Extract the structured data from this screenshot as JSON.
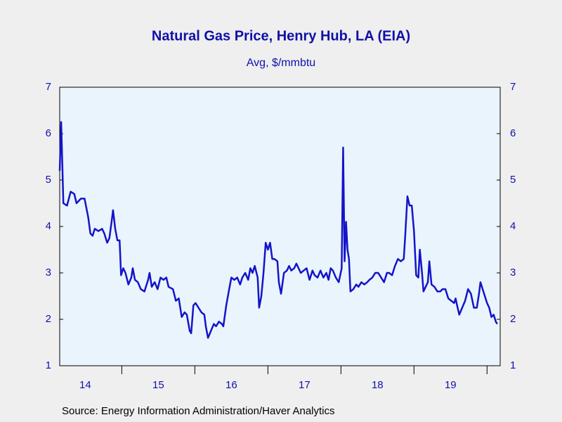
{
  "chart_data": {
    "type": "line",
    "title": "Natural Gas Price, Henry Hub, LA (EIA)",
    "subtitle": "Avg, $/mmbtu",
    "source": "Source:  Energy Information Administration/Haver Analytics",
    "x": [
      14.15,
      14.17,
      14.2,
      14.25,
      14.3,
      14.35,
      14.38,
      14.44,
      14.49,
      14.54,
      14.57,
      14.6,
      14.63,
      14.68,
      14.73,
      14.76,
      14.8,
      14.83,
      14.86,
      14.88,
      14.91,
      14.94,
      14.97,
      14.99,
      15.02,
      15.05,
      15.09,
      15.13,
      15.15,
      15.18,
      15.22,
      15.26,
      15.31,
      15.36,
      15.38,
      15.41,
      15.45,
      15.49,
      15.53,
      15.57,
      15.61,
      15.64,
      15.7,
      15.74,
      15.78,
      15.82,
      15.86,
      15.89,
      15.93,
      15.95,
      15.98,
      16.01,
      16.05,
      16.09,
      16.13,
      16.15,
      16.18,
      16.22,
      16.26,
      16.29,
      16.33,
      16.37,
      16.39,
      16.43,
      16.47,
      16.5,
      16.54,
      16.58,
      16.62,
      16.65,
      16.69,
      16.73,
      16.76,
      16.79,
      16.82,
      16.86,
      16.88,
      16.91,
      16.94,
      16.97,
      17.0,
      17.03,
      17.06,
      17.09,
      17.13,
      17.15,
      17.18,
      17.22,
      17.26,
      17.29,
      17.32,
      17.36,
      17.39,
      17.42,
      17.45,
      17.49,
      17.53,
      17.57,
      17.61,
      17.64,
      17.68,
      17.72,
      17.76,
      17.8,
      17.83,
      17.86,
      17.89,
      17.93,
      17.97,
      18.01,
      18.03,
      18.05,
      18.07,
      18.09,
      18.11,
      18.13,
      18.17,
      18.21,
      18.24,
      18.28,
      18.32,
      18.36,
      18.39,
      18.43,
      18.47,
      18.51,
      18.55,
      18.59,
      18.63,
      18.66,
      18.7,
      18.74,
      18.78,
      18.82,
      18.86,
      18.88,
      18.91,
      18.94,
      18.97,
      19.0,
      19.03,
      19.06,
      19.08,
      19.11,
      19.13,
      19.16,
      19.19,
      19.21,
      19.24,
      19.28,
      19.32,
      19.36,
      19.39,
      19.43,
      19.47,
      19.51,
      19.55,
      19.57,
      19.59,
      19.62,
      19.66,
      19.7,
      19.74,
      19.78,
      19.82,
      19.86,
      19.89,
      19.91,
      19.94,
      19.97,
      20.0,
      20.03,
      20.06,
      20.09,
      20.12,
      20.14
    ],
    "series": [
      {
        "name": "Natural Gas Price, Henry Hub, LA",
        "color": "#1414c8",
        "values": [
          5.2,
          6.25,
          4.5,
          4.45,
          4.75,
          4.7,
          4.5,
          4.6,
          4.6,
          4.2,
          3.85,
          3.8,
          3.95,
          3.9,
          3.95,
          3.85,
          3.65,
          3.75,
          4.1,
          4.35,
          3.95,
          3.7,
          3.7,
          2.95,
          3.1,
          3.0,
          2.75,
          2.9,
          3.1,
          2.85,
          2.8,
          2.65,
          2.6,
          2.85,
          3.0,
          2.7,
          2.8,
          2.65,
          2.9,
          2.85,
          2.9,
          2.7,
          2.65,
          2.4,
          2.45,
          2.05,
          2.15,
          2.1,
          1.75,
          1.7,
          2.3,
          2.35,
          2.25,
          2.15,
          2.1,
          1.85,
          1.6,
          1.75,
          1.9,
          1.85,
          1.95,
          1.9,
          1.85,
          2.3,
          2.65,
          2.9,
          2.85,
          2.9,
          2.75,
          2.9,
          3.0,
          2.85,
          3.1,
          3.0,
          3.15,
          2.9,
          2.25,
          2.5,
          3.0,
          3.65,
          3.5,
          3.65,
          3.3,
          3.3,
          3.25,
          2.8,
          2.55,
          3.0,
          3.05,
          3.15,
          3.05,
          3.1,
          3.2,
          3.1,
          3.0,
          3.05,
          3.1,
          2.85,
          3.05,
          2.95,
          2.9,
          3.05,
          2.9,
          3.0,
          2.85,
          3.1,
          3.05,
          2.9,
          2.8,
          3.1,
          5.7,
          3.25,
          4.1,
          3.5,
          3.3,
          2.6,
          2.65,
          2.75,
          2.7,
          2.8,
          2.75,
          2.8,
          2.85,
          2.9,
          3.0,
          3.0,
          2.9,
          2.8,
          3.0,
          3.0,
          2.95,
          3.15,
          3.3,
          3.25,
          3.3,
          3.8,
          4.65,
          4.45,
          4.45,
          3.9,
          2.95,
          2.9,
          3.5,
          3.0,
          2.6,
          2.7,
          2.8,
          3.25,
          2.75,
          2.7,
          2.6,
          2.6,
          2.65,
          2.65,
          2.45,
          2.4,
          2.35,
          2.45,
          2.3,
          2.1,
          2.25,
          2.4,
          2.65,
          2.55,
          2.25,
          2.25,
          2.55,
          2.8,
          2.65,
          2.5,
          2.35,
          2.25,
          2.05,
          2.1,
          1.95,
          1.9
        ]
      }
    ],
    "xlim": [
      14.15,
      20.18
    ],
    "xticks": [
      {
        "value": 14.5,
        "label": "14"
      },
      {
        "value": 15.5,
        "label": "15"
      },
      {
        "value": 16.5,
        "label": "16"
      },
      {
        "value": 17.5,
        "label": "17"
      },
      {
        "value": 18.5,
        "label": "18"
      },
      {
        "value": 19.5,
        "label": "19"
      }
    ],
    "ylim": [
      1,
      7
    ],
    "yticks": [
      1,
      2,
      3,
      4,
      5,
      6,
      7
    ],
    "y2lim": [
      1,
      7
    ],
    "y2ticks": [
      1,
      2,
      3,
      4,
      5,
      6,
      7
    ],
    "plot_background": "#eaf4fd"
  }
}
